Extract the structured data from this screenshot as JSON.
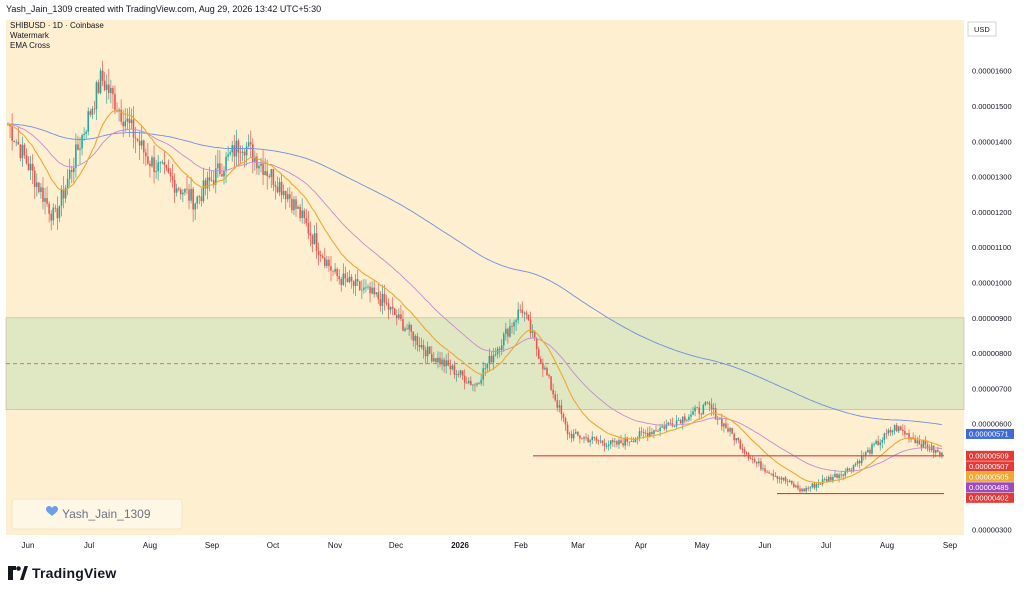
{
  "header": {
    "attribution": "Yash_Jain_1309 created with TradingView.com, Aug 29, 2026 13:42 UTC+5:30"
  },
  "chart_info": {
    "line1": "SHIBUSD · 1D · Coinbase",
    "line2": "Watermark",
    "line3": "EMA Cross"
  },
  "currency_label": "USD",
  "watermark": {
    "text": "Yash_Jain_1309",
    "icon": "blue-heart-icon"
  },
  "footer": {
    "logo_text": "TradingView",
    "logo_icon": "tradingview-logo-icon"
  },
  "colors": {
    "background": "#fdefd0",
    "zone_fill": "#dfe8c2",
    "up_candle": "#26a69a",
    "down_candle": "#ef5350",
    "ema_fast": "#f0a830",
    "ema_mid": "#c88ad0",
    "ema_slow": "#6f8fe0",
    "support_line": "#e53935",
    "dashed_line": "#d06060"
  },
  "chart_data": {
    "type": "candlestick",
    "symbol": "SHIBUSD",
    "timeframe": "1D",
    "exchange": "Coinbase",
    "y_axis_ticks": [
      "0.00001600",
      "0.00001500",
      "0.00001400",
      "0.00001300",
      "0.00001200",
      "0.00001100",
      "0.00001000",
      "0.00000900",
      "0.00000800",
      "0.00000700",
      "0.00000600",
      "0.00000300"
    ],
    "x_axis_ticks": [
      "Jun",
      "Jul",
      "Aug",
      "Sep",
      "Oct",
      "Nov",
      "Dec",
      "2026",
      "Feb",
      "Mar",
      "Apr",
      "May",
      "Jun",
      "Jul",
      "Aug",
      "Sep"
    ],
    "ylim": [
      2.8e-06,
      1.72e-05
    ],
    "price_badges": [
      {
        "label": "0.00000571",
        "color": "#3f6ad8",
        "value": 5.71e-06
      },
      {
        "label": "0.00000509",
        "color": "#e53935",
        "value": 5.09e-06
      },
      {
        "label": "0.00000507",
        "color": "#e53935",
        "value": 5.07e-06
      },
      {
        "label": "0.00000505",
        "color": "#f0a830",
        "value": 5.05e-06
      },
      {
        "label": "0.00000485",
        "color": "#9c4bb8",
        "value": 4.85e-06
      },
      {
        "label": "0.00000402",
        "color": "#e53935",
        "value": 4.02e-06
      }
    ],
    "zones": [
      {
        "name": "supply-zone",
        "from": 6.4e-06,
        "to": 9e-06
      }
    ],
    "dashed_level": 7.7e-06,
    "support_lines": [
      {
        "value": 5.09e-06,
        "from_month": "Feb",
        "to_month": "Sep"
      },
      {
        "value": 4.02e-06,
        "from_month": "Jun",
        "to_month": "Sep"
      }
    ],
    "approx_closes": [
      {
        "month": "Jun",
        "value": 1.45e-05
      },
      {
        "month": "Jul",
        "value": 1.18e-05
      },
      {
        "month": "Jul-end",
        "value": 1.58e-05
      },
      {
        "month": "Aug",
        "value": 1.35e-05
      },
      {
        "month": "Sep",
        "value": 1.23e-05
      },
      {
        "month": "Sep-end",
        "value": 1.4e-05
      },
      {
        "month": "Oct",
        "value": 1.25e-05
      },
      {
        "month": "Oct-mid",
        "value": 1.02e-05
      },
      {
        "month": "Nov",
        "value": 9.5e-06
      },
      {
        "month": "Dec",
        "value": 8e-06
      },
      {
        "month": "Dec-end",
        "value": 7.1e-06
      },
      {
        "month": "2026",
        "value": 9.3e-06
      },
      {
        "month": "Feb",
        "value": 5.7e-06
      },
      {
        "month": "Mar",
        "value": 5.4e-06
      },
      {
        "month": "Apr",
        "value": 5.9e-06
      },
      {
        "month": "May",
        "value": 6.5e-06
      },
      {
        "month": "Jun",
        "value": 4.9e-06
      },
      {
        "month": "Jul",
        "value": 4.1e-06
      },
      {
        "month": "Aug",
        "value": 4.7e-06
      },
      {
        "month": "Aug-end",
        "value": 5.9e-06
      },
      {
        "month": "Sep",
        "value": 5.1e-06
      }
    ]
  }
}
